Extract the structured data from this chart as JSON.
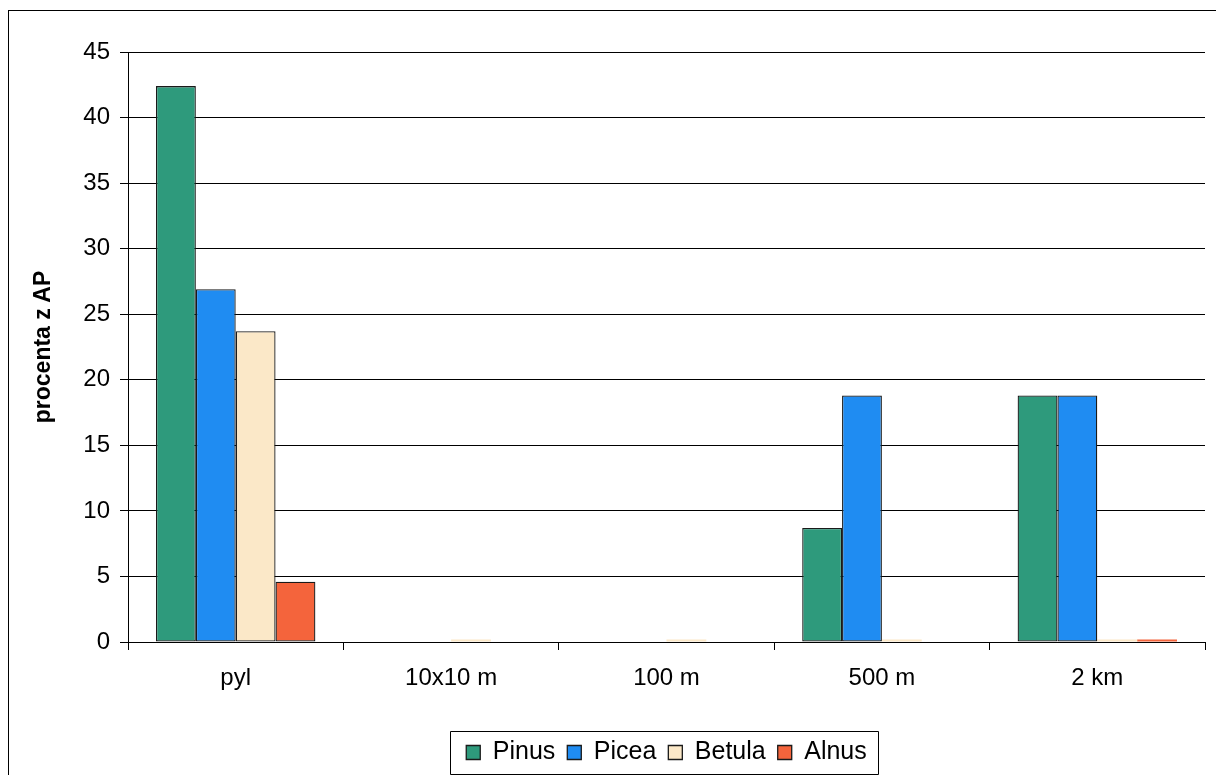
{
  "chart_data": {
    "type": "bar",
    "ylabel": "procenta z AP",
    "categories": [
      "pyl",
      "10x10 m",
      "100 m",
      "500 m",
      "2 km"
    ],
    "series": [
      {
        "name": "Pinus",
        "color": "#2e9a7c",
        "values": [
          42.4,
          0,
          0,
          8.7,
          18.8
        ]
      },
      {
        "name": "Picea",
        "color": "#1f8cf2",
        "values": [
          26.9,
          0,
          0,
          18.8,
          18.8
        ]
      },
      {
        "name": "Betula",
        "color": "#fbe8c8",
        "values": [
          23.7,
          0.2,
          0.2,
          0.2,
          0.2
        ]
      },
      {
        "name": "Alnus",
        "color": "#f4643c",
        "values": [
          4.6,
          0,
          0,
          0,
          0.2
        ]
      }
    ],
    "ylim": [
      0,
      45
    ],
    "yticks": [
      0,
      5,
      10,
      15,
      20,
      25,
      30,
      35,
      40,
      45
    ],
    "grid": "y",
    "legend": "bottom"
  }
}
